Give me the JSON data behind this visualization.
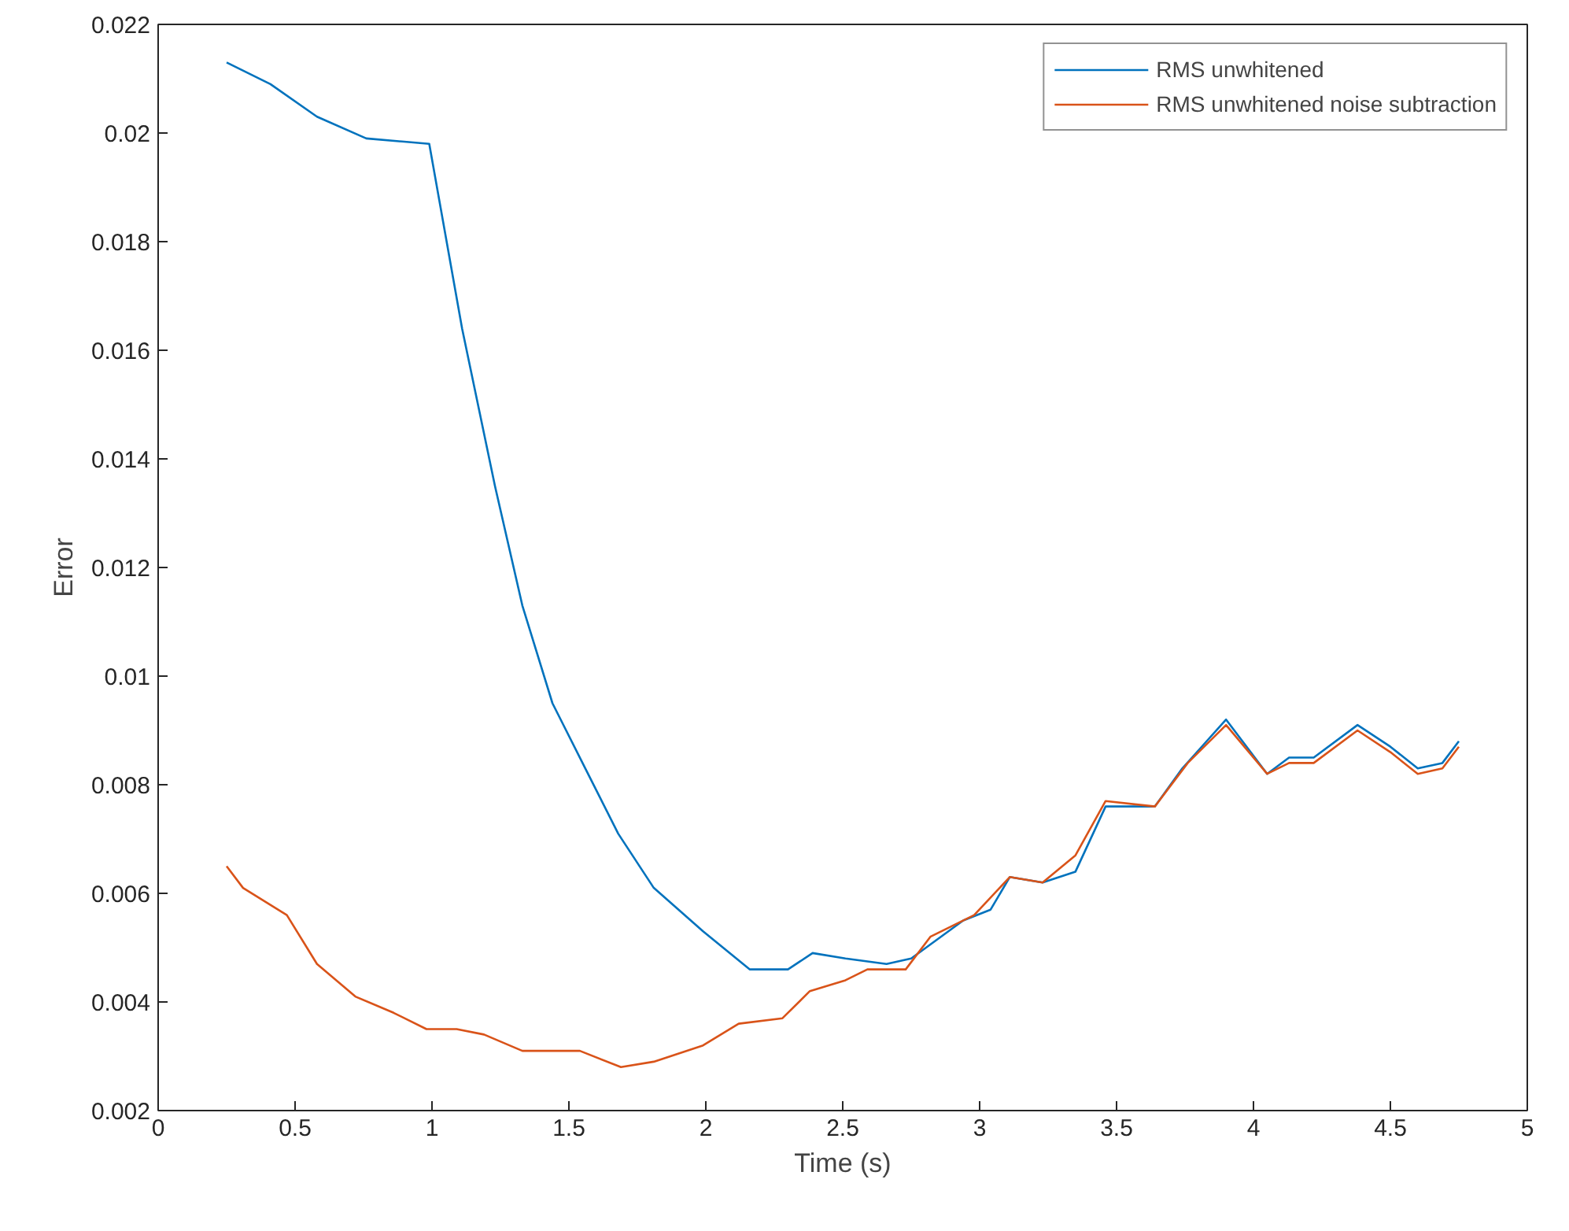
{
  "chart_data": {
    "type": "line",
    "xlabel": "Time (s)",
    "ylabel": "Error",
    "xlim": [
      0,
      5
    ],
    "xticks": [
      0,
      0.5,
      1,
      1.5,
      2,
      2.5,
      3,
      3.5,
      4,
      4.5,
      5
    ],
    "ylim": [
      0.002,
      0.022
    ],
    "yticks": [
      0.002,
      0.004,
      0.006,
      0.008,
      0.01,
      0.012,
      0.014,
      0.016,
      0.018,
      0.02,
      0.022
    ],
    "grid": false,
    "legend": "top right",
    "line_style": "solid",
    "marker": "none",
    "series": [
      {
        "name": "RMS unwhitened",
        "color": "#0072bd",
        "x": [
          0.25,
          0.41,
          0.58,
          0.76,
          0.99,
          1.11,
          1.23,
          1.33,
          1.44,
          1.56,
          1.68,
          1.81,
          1.99,
          2.16,
          2.3,
          2.39,
          2.51,
          2.66,
          2.75,
          2.94,
          3.04,
          3.11,
          3.23,
          3.35,
          3.46,
          3.64,
          3.74,
          3.9,
          4.05,
          4.13,
          4.22,
          4.38,
          4.5,
          4.6,
          4.69,
          4.75
        ],
        "values": [
          0.0213,
          0.0209,
          0.0203,
          0.0199,
          0.0198,
          0.0164,
          0.0135,
          0.0113,
          0.0095,
          0.0083,
          0.0071,
          0.0061,
          0.0053,
          0.0046,
          0.0046,
          0.0049,
          0.0048,
          0.0047,
          0.0048,
          0.0055,
          0.0057,
          0.0063,
          0.0062,
          0.0064,
          0.0076,
          0.0076,
          0.0083,
          0.0092,
          0.0082,
          0.0085,
          0.0085,
          0.0091,
          0.0087,
          0.0083,
          0.0084,
          0.0088
        ]
      },
      {
        "name": "RMS unwhitened noise subtraction",
        "color": "#d95319",
        "x": [
          0.25,
          0.31,
          0.47,
          0.58,
          0.72,
          0.86,
          0.98,
          1.09,
          1.19,
          1.33,
          1.54,
          1.69,
          1.81,
          1.99,
          2.12,
          2.28,
          2.38,
          2.51,
          2.59,
          2.73,
          2.82,
          2.98,
          3.11,
          3.23,
          3.35,
          3.46,
          3.64,
          3.76,
          3.9,
          4.05,
          4.13,
          4.22,
          4.38,
          4.5,
          4.6,
          4.69,
          4.75
        ],
        "values": [
          0.0065,
          0.0061,
          0.0056,
          0.0047,
          0.0041,
          0.0038,
          0.0035,
          0.0035,
          0.0034,
          0.0031,
          0.0031,
          0.0028,
          0.0029,
          0.0032,
          0.0036,
          0.0037,
          0.0042,
          0.0044,
          0.0046,
          0.0046,
          0.0052,
          0.0056,
          0.0063,
          0.0062,
          0.0067,
          0.0077,
          0.0076,
          0.0084,
          0.0091,
          0.0082,
          0.0084,
          0.0084,
          0.009,
          0.0086,
          0.0082,
          0.0083,
          0.0087
        ]
      }
    ]
  }
}
